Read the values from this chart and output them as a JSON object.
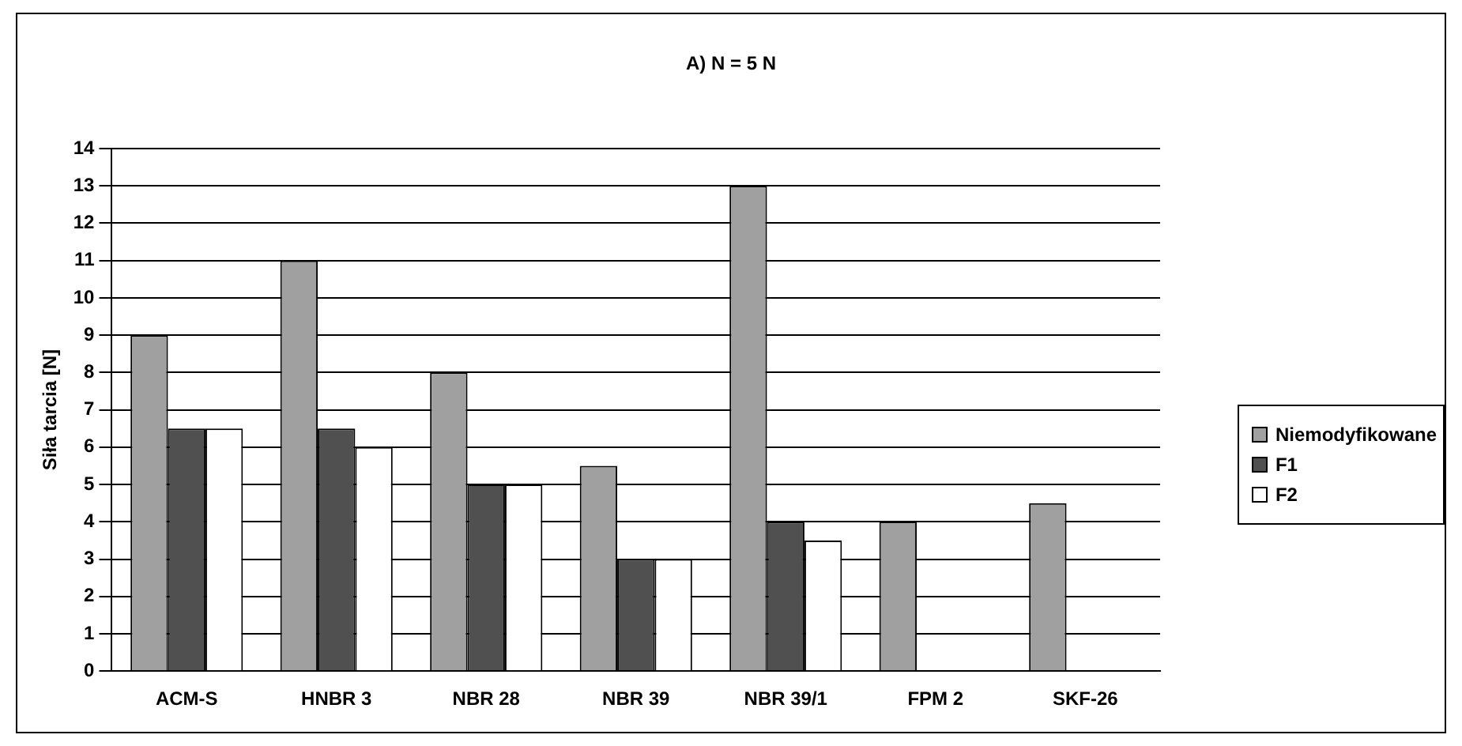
{
  "chart_data": {
    "type": "bar",
    "title": "A) N = 5 N",
    "ylabel": "Siła tarcia [N]",
    "categories": [
      "ACM-S",
      "HNBR 3",
      "NBR 28",
      "NBR 39",
      "NBR 39/1",
      "FPM 2",
      "SKF-26"
    ],
    "series": [
      {
        "name": "Niemodyfikowane",
        "color": "#a0a0a0",
        "values": [
          9,
          11,
          8,
          5.5,
          13,
          4,
          4.5
        ]
      },
      {
        "name": "F1",
        "color": "#505050",
        "values": [
          6.5,
          6.5,
          5,
          3,
          4,
          null,
          null
        ]
      },
      {
        "name": "F2",
        "color": "#ffffff",
        "values": [
          6.5,
          6,
          5,
          3,
          3.5,
          null,
          null
        ]
      }
    ],
    "ylim": [
      0,
      14
    ],
    "yticks": [
      0,
      1,
      2,
      3,
      4,
      5,
      6,
      7,
      8,
      9,
      10,
      11,
      12,
      13,
      14
    ],
    "grid": "y",
    "legend": "right"
  }
}
